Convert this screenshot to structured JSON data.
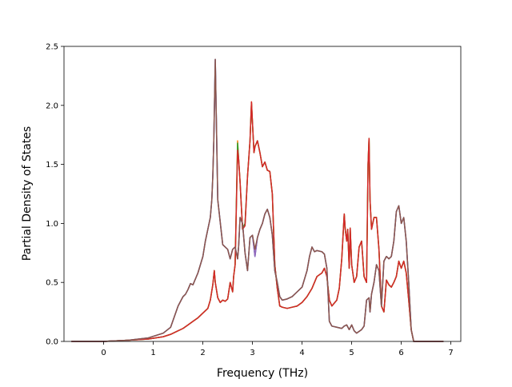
{
  "chart_data": {
    "type": "line",
    "title": "",
    "xlabel": "Frequency (THz)",
    "ylabel": "Partial Density of States",
    "xlim": [
      -0.8,
      7.2
    ],
    "ylim": [
      0,
      2.5
    ],
    "xticks": [
      0,
      1,
      2,
      3,
      4,
      5,
      6,
      7
    ],
    "xtick_labels": [
      "0",
      "1",
      "2",
      "3",
      "4",
      "5",
      "6",
      "7"
    ],
    "yticks": [
      0.0,
      0.5,
      1.0,
      1.5,
      2.0,
      2.5
    ],
    "ytick_labels": [
      "0.0",
      "0.5",
      "1.0",
      "1.5",
      "2.0",
      "2.5"
    ],
    "grid": false,
    "legend": "none",
    "series": [
      {
        "color": "#1f77b4",
        "x": [
          -0.65,
          0.0,
          0.5,
          0.9,
          1.2,
          1.35,
          1.5,
          1.6,
          1.65,
          1.7,
          1.75,
          1.8,
          1.9,
          2.0,
          2.05,
          2.1,
          2.15,
          2.18,
          2.2,
          2.22,
          2.25,
          2.3,
          2.4,
          2.5,
          2.55,
          2.6,
          2.65,
          2.7,
          2.72,
          2.75,
          2.8,
          2.85,
          2.9,
          2.95,
          3.0,
          3.05,
          3.1,
          3.15,
          3.2,
          3.25,
          3.3,
          3.35,
          3.4,
          3.45,
          3.5,
          3.55,
          3.6,
          3.7,
          3.8,
          3.9,
          4.0,
          4.1,
          4.15,
          4.2,
          4.25,
          4.3,
          4.4,
          4.45,
          4.5,
          4.55,
          4.6,
          4.7,
          4.8,
          4.85,
          4.9,
          4.95,
          5.0,
          5.05,
          5.1,
          5.2,
          5.25,
          5.3,
          5.35,
          5.37,
          5.4,
          5.45,
          5.5,
          5.55,
          5.6,
          5.65,
          5.7,
          5.75,
          5.8,
          5.85,
          5.9,
          5.95,
          6.0,
          6.05,
          6.1,
          6.15,
          6.2,
          6.25,
          6.3,
          6.85
        ],
        "y": [
          0.0,
          0.0,
          0.01,
          0.03,
          0.07,
          0.12,
          0.3,
          0.38,
          0.4,
          0.44,
          0.49,
          0.48,
          0.58,
          0.72,
          0.85,
          0.95,
          1.05,
          1.2,
          1.4,
          1.7,
          2.39,
          1.2,
          0.82,
          0.78,
          0.7,
          0.78,
          0.8,
          0.7,
          0.8,
          1.05,
          1.0,
          0.75,
          0.6,
          0.88,
          0.9,
          0.72,
          0.88,
          0.95,
          1.0,
          1.08,
          1.12,
          1.05,
          0.9,
          0.6,
          0.5,
          0.38,
          0.35,
          0.36,
          0.38,
          0.42,
          0.46,
          0.6,
          0.72,
          0.8,
          0.76,
          0.77,
          0.76,
          0.74,
          0.62,
          0.17,
          0.13,
          0.12,
          0.11,
          0.13,
          0.14,
          0.1,
          0.14,
          0.09,
          0.07,
          0.1,
          0.13,
          0.35,
          0.37,
          0.25,
          0.4,
          0.5,
          0.65,
          0.6,
          0.3,
          0.68,
          0.72,
          0.7,
          0.72,
          0.85,
          1.1,
          1.15,
          1.0,
          1.05,
          0.85,
          0.5,
          0.1,
          0.0,
          0.0,
          0.0
        ]
      },
      {
        "color": "#ff7f0e",
        "x": [
          -0.65,
          0.0,
          0.5,
          0.9,
          1.2,
          1.35,
          1.5,
          1.6,
          1.7,
          1.8,
          1.9,
          2.0,
          2.1,
          2.15,
          2.2,
          2.23,
          2.25,
          2.3,
          2.35,
          2.4,
          2.45,
          2.5,
          2.55,
          2.6,
          2.62,
          2.65,
          2.7,
          2.72,
          2.75,
          2.8,
          2.85,
          2.9,
          2.95,
          2.98,
          3.0,
          3.03,
          3.05,
          3.1,
          3.15,
          3.2,
          3.25,
          3.3,
          3.35,
          3.4,
          3.45,
          3.5,
          3.55,
          3.6,
          3.7,
          3.8,
          3.9,
          4.0,
          4.1,
          4.2,
          4.3,
          4.4,
          4.45,
          4.5,
          4.55,
          4.6,
          4.7,
          4.75,
          4.8,
          4.85,
          4.87,
          4.9,
          4.92,
          4.95,
          4.97,
          5.0,
          5.05,
          5.1,
          5.15,
          5.2,
          5.25,
          5.3,
          5.33,
          5.35,
          5.37,
          5.4,
          5.45,
          5.5,
          5.55,
          5.6,
          5.65,
          5.7,
          5.75,
          5.8,
          5.85,
          5.9,
          5.95,
          6.0,
          6.05,
          6.1,
          6.15,
          6.2,
          6.25,
          6.85
        ],
        "y": [
          0.0,
          0.0,
          0.01,
          0.02,
          0.04,
          0.06,
          0.09,
          0.11,
          0.14,
          0.17,
          0.2,
          0.24,
          0.28,
          0.35,
          0.48,
          0.6,
          0.5,
          0.37,
          0.33,
          0.35,
          0.34,
          0.36,
          0.5,
          0.42,
          0.55,
          0.65,
          1.7,
          1.55,
          1.35,
          0.95,
          1.0,
          1.4,
          1.7,
          2.03,
          1.85,
          1.6,
          1.65,
          1.7,
          1.6,
          1.48,
          1.52,
          1.45,
          1.44,
          1.25,
          0.65,
          0.45,
          0.3,
          0.29,
          0.28,
          0.29,
          0.3,
          0.33,
          0.38,
          0.45,
          0.55,
          0.58,
          0.62,
          0.55,
          0.35,
          0.3,
          0.35,
          0.45,
          0.7,
          1.08,
          0.95,
          0.85,
          0.95,
          0.62,
          0.96,
          0.65,
          0.5,
          0.55,
          0.8,
          0.85,
          0.55,
          0.5,
          1.5,
          1.72,
          1.2,
          0.95,
          1.05,
          1.05,
          0.78,
          0.3,
          0.25,
          0.52,
          0.48,
          0.46,
          0.5,
          0.55,
          0.68,
          0.62,
          0.68,
          0.58,
          0.35,
          0.1,
          0.0,
          0.0
        ]
      },
      {
        "color": "#2ca02c",
        "x": [
          -0.65,
          0.0,
          0.5,
          0.9,
          1.2,
          1.35,
          1.5,
          1.6,
          1.7,
          1.8,
          1.9,
          2.0,
          2.1,
          2.15,
          2.2,
          2.23,
          2.25,
          2.3,
          2.35,
          2.4,
          2.45,
          2.5,
          2.55,
          2.6,
          2.62,
          2.65,
          2.7,
          2.72,
          2.75,
          2.8,
          2.85,
          2.9,
          2.95,
          2.98,
          3.0,
          3.03,
          3.05,
          3.1,
          3.15,
          3.2,
          3.25,
          3.3,
          3.35,
          3.4,
          3.45,
          3.5,
          3.55,
          3.6,
          3.7,
          3.8,
          3.9,
          4.0,
          4.1,
          4.2,
          4.3,
          4.4,
          4.45,
          4.5,
          4.55,
          4.6,
          4.7,
          4.75,
          4.8,
          4.85,
          4.87,
          4.9,
          4.92,
          4.95,
          4.97,
          5.0,
          5.05,
          5.1,
          5.15,
          5.2,
          5.25,
          5.3,
          5.33,
          5.35,
          5.37,
          5.4,
          5.45,
          5.5,
          5.55,
          5.6,
          5.65,
          5.7,
          5.75,
          5.8,
          5.85,
          5.9,
          5.95,
          6.0,
          6.05,
          6.1,
          6.15,
          6.2,
          6.25,
          6.85
        ],
        "y": [
          0.0,
          0.0,
          0.01,
          0.02,
          0.04,
          0.06,
          0.09,
          0.11,
          0.14,
          0.17,
          0.2,
          0.24,
          0.28,
          0.35,
          0.48,
          0.6,
          0.5,
          0.37,
          0.33,
          0.35,
          0.34,
          0.36,
          0.5,
          0.42,
          0.55,
          0.65,
          1.68,
          1.55,
          1.35,
          0.95,
          1.0,
          1.4,
          1.7,
          2.02,
          1.85,
          1.6,
          1.65,
          1.7,
          1.6,
          1.48,
          1.52,
          1.45,
          1.44,
          1.25,
          0.65,
          0.45,
          0.3,
          0.29,
          0.28,
          0.29,
          0.3,
          0.33,
          0.38,
          0.45,
          0.55,
          0.58,
          0.62,
          0.55,
          0.35,
          0.3,
          0.35,
          0.45,
          0.7,
          1.08,
          0.95,
          0.85,
          0.95,
          0.62,
          0.96,
          0.65,
          0.5,
          0.55,
          0.8,
          0.85,
          0.55,
          0.5,
          1.5,
          1.72,
          1.2,
          0.95,
          1.05,
          1.05,
          0.78,
          0.3,
          0.25,
          0.52,
          0.48,
          0.46,
          0.5,
          0.55,
          0.68,
          0.62,
          0.68,
          0.58,
          0.35,
          0.1,
          0.0,
          0.0
        ]
      },
      {
        "color": "#d62728",
        "x": [
          -0.65,
          0.0,
          0.5,
          0.9,
          1.2,
          1.35,
          1.5,
          1.6,
          1.7,
          1.8,
          1.9,
          2.0,
          2.1,
          2.15,
          2.2,
          2.23,
          2.25,
          2.3,
          2.35,
          2.4,
          2.45,
          2.5,
          2.55,
          2.6,
          2.62,
          2.65,
          2.7,
          2.72,
          2.75,
          2.8,
          2.85,
          2.9,
          2.95,
          2.98,
          3.0,
          3.03,
          3.05,
          3.1,
          3.15,
          3.2,
          3.25,
          3.3,
          3.35,
          3.4,
          3.45,
          3.5,
          3.55,
          3.6,
          3.7,
          3.8,
          3.9,
          4.0,
          4.1,
          4.2,
          4.3,
          4.4,
          4.45,
          4.5,
          4.55,
          4.6,
          4.7,
          4.75,
          4.8,
          4.85,
          4.87,
          4.9,
          4.92,
          4.95,
          4.97,
          5.0,
          5.05,
          5.1,
          5.15,
          5.2,
          5.25,
          5.3,
          5.33,
          5.35,
          5.37,
          5.4,
          5.45,
          5.5,
          5.55,
          5.6,
          5.65,
          5.7,
          5.75,
          5.8,
          5.85,
          5.9,
          5.95,
          6.0,
          6.05,
          6.1,
          6.15,
          6.2,
          6.25,
          6.85
        ],
        "y": [
          0.0,
          0.0,
          0.01,
          0.02,
          0.04,
          0.06,
          0.09,
          0.11,
          0.14,
          0.17,
          0.2,
          0.24,
          0.28,
          0.35,
          0.48,
          0.6,
          0.5,
          0.37,
          0.33,
          0.35,
          0.34,
          0.36,
          0.5,
          0.42,
          0.55,
          0.65,
          1.62,
          1.55,
          1.35,
          0.95,
          0.98,
          1.4,
          1.7,
          2.03,
          1.85,
          1.6,
          1.65,
          1.7,
          1.6,
          1.48,
          1.52,
          1.45,
          1.44,
          1.25,
          0.65,
          0.45,
          0.3,
          0.29,
          0.28,
          0.29,
          0.3,
          0.33,
          0.38,
          0.45,
          0.55,
          0.58,
          0.62,
          0.55,
          0.35,
          0.3,
          0.35,
          0.45,
          0.7,
          1.08,
          0.95,
          0.85,
          0.95,
          0.62,
          0.96,
          0.65,
          0.5,
          0.55,
          0.8,
          0.85,
          0.55,
          0.5,
          1.5,
          1.72,
          1.2,
          0.95,
          1.05,
          1.05,
          0.78,
          0.3,
          0.25,
          0.52,
          0.48,
          0.46,
          0.5,
          0.55,
          0.68,
          0.62,
          0.68,
          0.58,
          0.35,
          0.1,
          0.0,
          0.0
        ]
      },
      {
        "color": "#9467bd",
        "x": [
          -0.65,
          0.0,
          0.5,
          0.9,
          1.2,
          1.35,
          1.5,
          1.6,
          1.65,
          1.7,
          1.75,
          1.8,
          1.9,
          2.0,
          2.05,
          2.1,
          2.15,
          2.18,
          2.2,
          2.22,
          2.25,
          2.3,
          2.4,
          2.5,
          2.55,
          2.6,
          2.65,
          2.7,
          2.72,
          2.75,
          2.8,
          2.85,
          2.9,
          2.95,
          3.0,
          3.05,
          3.1,
          3.15,
          3.2,
          3.25,
          3.3,
          3.35,
          3.4,
          3.45,
          3.5,
          3.55,
          3.6,
          3.7,
          3.8,
          3.9,
          4.0,
          4.1,
          4.15,
          4.2,
          4.25,
          4.3,
          4.4,
          4.45,
          4.5,
          4.55,
          4.6,
          4.7,
          4.8,
          4.85,
          4.9,
          4.95,
          5.0,
          5.05,
          5.1,
          5.2,
          5.25,
          5.3,
          5.35,
          5.37,
          5.4,
          5.45,
          5.5,
          5.55,
          5.6,
          5.65,
          5.7,
          5.75,
          5.8,
          5.85,
          5.9,
          5.95,
          6.0,
          6.05,
          6.1,
          6.15,
          6.2,
          6.25,
          6.3,
          6.85
        ],
        "y": [
          0.0,
          0.0,
          0.01,
          0.03,
          0.07,
          0.12,
          0.3,
          0.38,
          0.4,
          0.44,
          0.49,
          0.48,
          0.58,
          0.72,
          0.85,
          0.95,
          1.05,
          1.2,
          1.4,
          1.7,
          2.39,
          1.2,
          0.82,
          0.78,
          0.7,
          0.78,
          0.8,
          0.7,
          0.8,
          1.05,
          1.0,
          0.75,
          0.6,
          0.88,
          0.9,
          0.72,
          0.88,
          0.95,
          1.0,
          1.08,
          1.12,
          1.05,
          0.9,
          0.6,
          0.5,
          0.38,
          0.35,
          0.36,
          0.38,
          0.42,
          0.46,
          0.6,
          0.72,
          0.8,
          0.76,
          0.77,
          0.76,
          0.74,
          0.62,
          0.17,
          0.13,
          0.12,
          0.11,
          0.13,
          0.14,
          0.1,
          0.14,
          0.09,
          0.07,
          0.1,
          0.13,
          0.35,
          0.37,
          0.25,
          0.4,
          0.5,
          0.65,
          0.6,
          0.3,
          0.68,
          0.72,
          0.7,
          0.72,
          0.85,
          1.1,
          1.15,
          1.0,
          1.05,
          0.85,
          0.5,
          0.1,
          0.0,
          0.0,
          0.0
        ]
      },
      {
        "color": "#8c564b",
        "x": [
          -0.65,
          0.0,
          0.5,
          0.9,
          1.2,
          1.35,
          1.5,
          1.6,
          1.65,
          1.7,
          1.75,
          1.8,
          1.9,
          2.0,
          2.05,
          2.1,
          2.15,
          2.18,
          2.2,
          2.22,
          2.25,
          2.3,
          2.4,
          2.5,
          2.55,
          2.6,
          2.65,
          2.7,
          2.72,
          2.75,
          2.8,
          2.85,
          2.9,
          2.95,
          3.0,
          3.05,
          3.1,
          3.15,
          3.2,
          3.25,
          3.3,
          3.35,
          3.4,
          3.45,
          3.5,
          3.55,
          3.6,
          3.7,
          3.8,
          3.9,
          4.0,
          4.1,
          4.15,
          4.2,
          4.25,
          4.3,
          4.4,
          4.45,
          4.5,
          4.55,
          4.6,
          4.7,
          4.8,
          4.85,
          4.9,
          4.95,
          5.0,
          5.05,
          5.1,
          5.2,
          5.25,
          5.3,
          5.35,
          5.37,
          5.4,
          5.45,
          5.5,
          5.55,
          5.6,
          5.65,
          5.7,
          5.75,
          5.8,
          5.85,
          5.9,
          5.95,
          6.0,
          6.05,
          6.1,
          6.15,
          6.2,
          6.25,
          6.3,
          6.85
        ],
        "y": [
          0.0,
          0.0,
          0.01,
          0.03,
          0.07,
          0.12,
          0.3,
          0.38,
          0.4,
          0.44,
          0.49,
          0.48,
          0.58,
          0.72,
          0.85,
          0.95,
          1.05,
          1.2,
          1.4,
          1.7,
          2.39,
          1.2,
          0.82,
          0.78,
          0.7,
          0.78,
          0.8,
          0.7,
          0.8,
          1.05,
          1.0,
          0.75,
          0.6,
          0.88,
          0.9,
          0.78,
          0.88,
          0.95,
          1.0,
          1.08,
          1.12,
          1.05,
          0.9,
          0.6,
          0.5,
          0.38,
          0.35,
          0.36,
          0.38,
          0.42,
          0.46,
          0.6,
          0.72,
          0.8,
          0.76,
          0.77,
          0.76,
          0.74,
          0.62,
          0.17,
          0.13,
          0.12,
          0.11,
          0.13,
          0.14,
          0.1,
          0.14,
          0.09,
          0.07,
          0.1,
          0.13,
          0.35,
          0.37,
          0.25,
          0.4,
          0.5,
          0.65,
          0.6,
          0.3,
          0.68,
          0.72,
          0.7,
          0.72,
          0.85,
          1.1,
          1.15,
          1.0,
          1.05,
          0.85,
          0.5,
          0.1,
          0.0,
          0.0,
          0.0
        ]
      }
    ]
  }
}
